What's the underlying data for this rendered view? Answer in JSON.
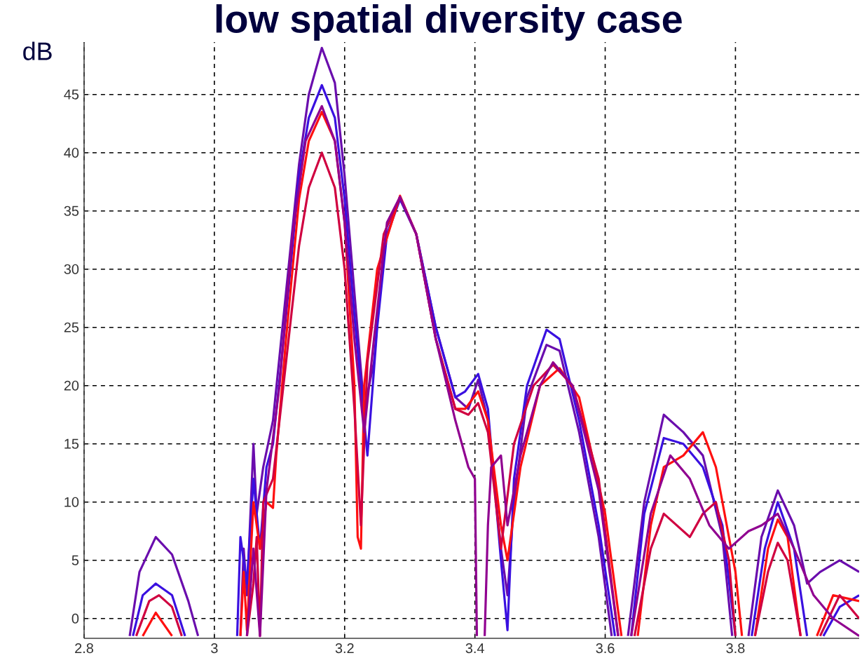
{
  "chart_data": {
    "type": "line",
    "title": "low spatial diversity case",
    "ylabel": "dB",
    "xlim": [
      2.8,
      3.99
    ],
    "ylim": [
      -1.7,
      49.5
    ],
    "xticks": [
      2.8,
      3,
      3.2,
      3.4,
      3.6,
      3.8
    ],
    "yticks": [
      0,
      5,
      10,
      15,
      20,
      25,
      30,
      35,
      40,
      45
    ],
    "grid": true,
    "line_style": "solid",
    "marker": "none",
    "series": [
      {
        "color": "#6a0dad",
        "x": [
          2.87,
          2.885,
          2.91,
          2.935,
          2.96,
          2.975,
          3.0,
          3.04,
          3.045,
          3.05,
          3.06,
          3.065,
          3.075,
          3.09,
          3.11,
          3.13,
          3.145,
          3.165,
          3.185,
          3.2,
          3.215,
          3.23,
          3.245,
          3.26,
          3.285,
          3.31,
          3.34,
          3.37,
          3.39,
          3.405,
          3.42,
          3.44,
          3.45,
          3.46,
          3.48,
          3.51,
          3.53,
          3.56,
          3.59,
          3.61,
          3.62,
          3.635,
          3.66,
          3.69,
          3.72,
          3.75,
          3.78,
          3.795,
          3.81,
          3.82,
          3.84,
          3.865,
          3.89,
          3.91,
          3.93,
          3.96,
          3.99
        ],
        "values": [
          -1.5,
          4,
          7,
          5.5,
          1.5,
          -1.5,
          null,
          -1.5,
          6,
          2,
          15,
          9,
          13,
          17,
          28,
          39,
          45,
          49,
          46,
          38,
          28,
          18,
          22,
          32,
          36.2,
          33,
          25,
          19,
          18,
          20.5,
          17,
          6,
          2,
          10,
          19,
          23.5,
          23,
          16,
          7,
          -1.5,
          null,
          -1.5,
          10,
          17.5,
          16,
          14,
          7,
          -1.5,
          null,
          -1.5,
          7,
          11,
          8,
          3,
          4,
          5,
          4
        ]
      },
      {
        "color": "#3a10e0",
        "x": [
          2.875,
          2.89,
          2.91,
          2.935,
          2.955,
          3.0,
          3.035,
          3.04,
          3.05,
          3.06,
          3.07,
          3.08,
          3.09,
          3.11,
          3.13,
          3.145,
          3.165,
          3.185,
          3.2,
          3.215,
          3.235,
          3.25,
          3.265,
          3.285,
          3.31,
          3.34,
          3.37,
          3.385,
          3.405,
          3.42,
          3.44,
          3.45,
          3.46,
          3.48,
          3.51,
          3.53,
          3.56,
          3.59,
          3.615,
          3.625,
          3.64,
          3.66,
          3.69,
          3.72,
          3.75,
          3.78,
          3.8,
          3.81,
          3.825,
          3.845,
          3.865,
          3.89,
          3.91,
          3.92,
          3.935,
          3.96,
          3.99
        ],
        "values": [
          -1.5,
          2,
          3,
          2,
          -1.5,
          null,
          -1.5,
          7,
          3,
          12,
          6,
          13,
          15,
          26,
          38,
          43,
          45.8,
          43,
          36,
          26,
          14,
          25,
          33,
          36,
          33,
          25,
          19,
          19.5,
          21,
          18,
          5,
          -1,
          12,
          20,
          24.8,
          24,
          17,
          8,
          -1.5,
          null,
          -1.5,
          9,
          15.5,
          15,
          13,
          8,
          -1.5,
          null,
          -1.5,
          6,
          10,
          6,
          -1.5,
          null,
          -1.5,
          1,
          2
        ]
      },
      {
        "color": "#ff1010",
        "x": [
          2.89,
          2.91,
          2.935,
          3.0,
          3.04,
          3.045,
          3.05,
          3.06,
          3.07,
          3.08,
          3.09,
          3.095,
          3.11,
          3.13,
          3.145,
          3.165,
          3.185,
          3.2,
          3.215,
          3.22,
          3.225,
          3.23,
          3.25,
          3.285,
          3.31,
          3.34,
          3.37,
          3.385,
          3.405,
          3.42,
          3.44,
          3.45,
          3.47,
          3.5,
          3.53,
          3.56,
          3.6,
          3.625,
          3.635,
          3.65,
          3.67,
          3.69,
          3.72,
          3.75,
          3.77,
          3.8,
          3.81,
          3.82,
          3.83,
          3.85,
          3.865,
          3.88,
          3.9,
          3.91,
          3.925,
          3.95,
          3.99
        ],
        "values": [
          -1.5,
          0.5,
          -1.5,
          null,
          -1.5,
          4,
          -1,
          10,
          6,
          10,
          9.5,
          14,
          24,
          36,
          41,
          43.5,
          41,
          34,
          20,
          7,
          6,
          20,
          30,
          36.3,
          33,
          24,
          18,
          18,
          19.5,
          17,
          8,
          5,
          13,
          20,
          21.5,
          19,
          9,
          -1.5,
          null,
          -1.5,
          8,
          13,
          14,
          16,
          13,
          4,
          -1.5,
          null,
          -1.5,
          6,
          8.5,
          7,
          -1.5,
          null,
          -1.5,
          2,
          1.5
        ]
      },
      {
        "color": "#d00040",
        "x": [
          2.88,
          2.9,
          2.915,
          2.935,
          2.95,
          3.0,
          3.05,
          3.06,
          3.065,
          3.07,
          3.075,
          3.09,
          3.11,
          3.13,
          3.145,
          3.165,
          3.185,
          3.2,
          3.215,
          3.225,
          3.235,
          3.26,
          3.285,
          3.31,
          3.34,
          3.37,
          3.39,
          3.405,
          3.42,
          3.44,
          3.46,
          3.49,
          3.52,
          3.55,
          3.59,
          3.62,
          3.63,
          3.645,
          3.67,
          3.69,
          3.71,
          3.73,
          3.75,
          3.77,
          3.79,
          3.8,
          3.815,
          3.83,
          3.85,
          3.865,
          3.88,
          3.9,
          3.91,
          3.93,
          3.96,
          3.99
        ],
        "values": [
          -1.5,
          1.5,
          2,
          1,
          -1.5,
          null,
          -1.5,
          3,
          7,
          -1.5,
          10,
          12,
          22,
          32,
          37,
          40,
          37,
          30,
          18,
          8,
          22,
          33,
          36.2,
          33,
          24,
          18,
          17.5,
          18.5,
          16,
          6,
          15,
          20,
          21.8,
          20,
          12,
          -1.5,
          null,
          -1.5,
          6,
          9,
          8,
          7,
          9,
          10,
          5,
          -1.5,
          null,
          -1.5,
          4,
          6.5,
          5,
          -1.5,
          null,
          -1.5,
          2,
          0
        ]
      },
      {
        "color": "#900090",
        "x": [
          3.05,
          3.06,
          3.07,
          3.08,
          3.1,
          3.12,
          3.14,
          3.165,
          3.185,
          3.2,
          3.215,
          3.23,
          3.245,
          3.265,
          3.285,
          3.31,
          3.34,
          3.37,
          3.39,
          3.4,
          3.403,
          3.41,
          3.415,
          3.42,
          3.425,
          3.44,
          3.45,
          3.47,
          3.5,
          3.52,
          3.55,
          3.59,
          3.62,
          3.63,
          3.64,
          3.67,
          3.7,
          3.73,
          3.76,
          3.79,
          3.82,
          3.84,
          3.865,
          3.89,
          3.92,
          3.95,
          3.99
        ],
        "values": [
          -1.5,
          6,
          -1.5,
          11,
          20,
          33,
          41,
          44,
          41,
          34,
          24,
          16,
          24,
          34,
          36.2,
          33,
          24,
          17,
          13,
          12,
          -1.5,
          null,
          -1.5,
          8,
          13,
          14,
          8,
          14,
          20,
          22,
          20,
          11,
          -1.5,
          null,
          -1.5,
          9,
          14,
          12,
          8,
          6,
          7.5,
          8,
          9,
          6,
          2,
          0,
          -1.5
        ]
      }
    ]
  }
}
